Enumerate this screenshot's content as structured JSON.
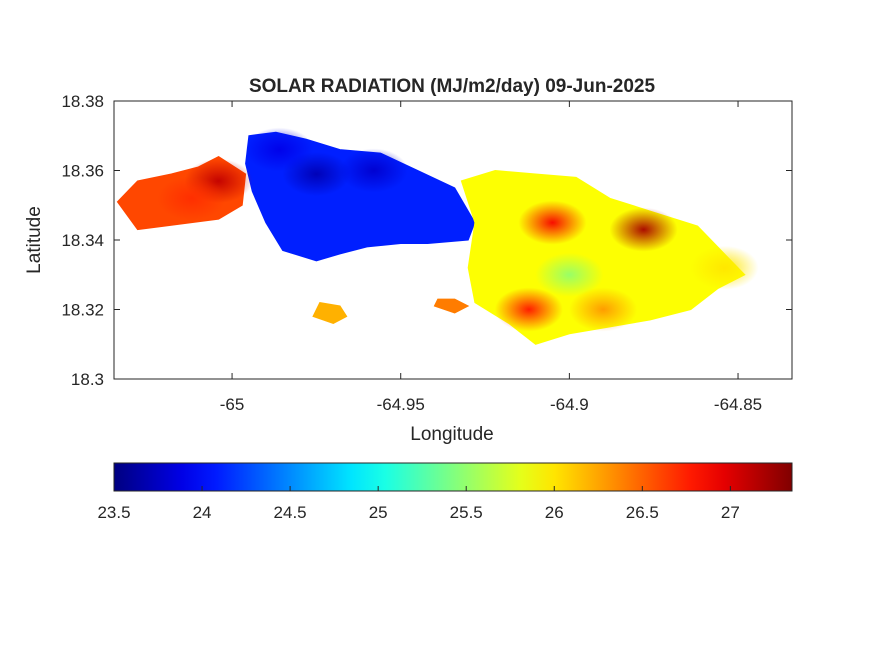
{
  "chart_data": {
    "type": "heatmap",
    "title": "SOLAR RADIATION (MJ/m2/day) 09-Jun-2025",
    "xlabel": "Longitude",
    "ylabel": "Latitude",
    "xlim": [
      -65.035,
      -64.834
    ],
    "ylim": [
      18.3,
      18.38
    ],
    "xticks": [
      -65,
      -64.95,
      -64.9,
      -64.85
    ],
    "xtick_labels": [
      "-65",
      "-64.95",
      "-64.9",
      "-64.85"
    ],
    "yticks": [
      18.3,
      18.32,
      18.34,
      18.36,
      18.38
    ],
    "ytick_labels": [
      "18.3",
      "18.32",
      "18.34",
      "18.36",
      "18.38"
    ],
    "grid": false,
    "colormap": "jet",
    "colorbar": {
      "location": "bottom",
      "clim": [
        23.5,
        27.35
      ],
      "ticks": [
        23.5,
        24,
        24.5,
        25,
        25.5,
        26,
        26.5,
        27
      ],
      "tick_labels": [
        "23.5",
        "24",
        "24.5",
        "25",
        "25.5",
        "26",
        "26.5",
        "27"
      ]
    },
    "regions": [
      {
        "name": "",
        "value": 26.6,
        "polygon": [
          [
            -65.034,
            18.351
          ],
          [
            -65.028,
            18.357
          ],
          [
            -65.018,
            18.359
          ],
          [
            -65.01,
            18.361
          ],
          [
            -65.004,
            18.364
          ],
          [
            -64.996,
            18.359
          ],
          [
            -64.997,
            18.35
          ],
          [
            -65.004,
            18.346
          ],
          [
            -65.012,
            18.345
          ],
          [
            -65.02,
            18.344
          ],
          [
            -65.028,
            18.343
          ]
        ]
      },
      {
        "name": "",
        "value": 24.1,
        "polygon": [
          [
            -64.995,
            18.37
          ],
          [
            -64.987,
            18.371
          ],
          [
            -64.978,
            18.369
          ],
          [
            -64.968,
            18.366
          ],
          [
            -64.956,
            18.365
          ],
          [
            -64.945,
            18.36
          ],
          [
            -64.934,
            18.355
          ],
          [
            -64.928,
            18.345
          ],
          [
            -64.93,
            18.34
          ],
          [
            -64.942,
            18.339
          ],
          [
            -64.95,
            18.339
          ],
          [
            -64.96,
            18.338
          ],
          [
            -64.968,
            18.336
          ],
          [
            -64.975,
            18.334
          ],
          [
            -64.985,
            18.337
          ],
          [
            -64.99,
            18.345
          ],
          [
            -64.994,
            18.354
          ],
          [
            -64.996,
            18.362
          ]
        ]
      },
      {
        "name": "",
        "value": 25.9,
        "polygon": [
          [
            -64.932,
            18.357
          ],
          [
            -64.922,
            18.36
          ],
          [
            -64.91,
            18.359
          ],
          [
            -64.898,
            18.358
          ],
          [
            -64.888,
            18.352
          ],
          [
            -64.875,
            18.348
          ],
          [
            -64.862,
            18.344
          ],
          [
            -64.854,
            18.336
          ],
          [
            -64.848,
            18.33
          ],
          [
            -64.856,
            18.326
          ],
          [
            -64.864,
            18.32
          ],
          [
            -64.876,
            18.317
          ],
          [
            -64.888,
            18.315
          ],
          [
            -64.9,
            18.313
          ],
          [
            -64.91,
            18.31
          ],
          [
            -64.918,
            18.316
          ],
          [
            -64.928,
            18.322
          ],
          [
            -64.93,
            18.332
          ],
          [
            -64.928,
            18.345
          ]
        ]
      },
      {
        "name": "",
        "value": 26.2,
        "polygon": [
          [
            -64.976,
            18.318
          ],
          [
            -64.97,
            18.316
          ],
          [
            -64.966,
            18.318
          ],
          [
            -64.968,
            18.321
          ],
          [
            -64.974,
            18.322
          ]
        ]
      },
      {
        "name": "",
        "value": 26.4,
        "polygon": [
          [
            -64.94,
            18.321
          ],
          [
            -64.934,
            18.319
          ],
          [
            -64.93,
            18.321
          ],
          [
            -64.934,
            18.323
          ],
          [
            -64.939,
            18.323
          ]
        ]
      }
    ],
    "hotspots": [
      {
        "x": -65.004,
        "y": 18.357,
        "value": 27.1
      },
      {
        "x": -65.012,
        "y": 18.352,
        "value": 26.7
      },
      {
        "x": -64.975,
        "y": 18.359,
        "value": 23.7
      },
      {
        "x": -64.958,
        "y": 18.36,
        "value": 23.8
      },
      {
        "x": -64.986,
        "y": 18.366,
        "value": 23.9
      },
      {
        "x": -64.905,
        "y": 18.345,
        "value": 26.9
      },
      {
        "x": -64.878,
        "y": 18.343,
        "value": 27.2
      },
      {
        "x": -64.9,
        "y": 18.33,
        "value": 25.5
      },
      {
        "x": -64.912,
        "y": 18.32,
        "value": 26.8
      },
      {
        "x": -64.89,
        "y": 18.32,
        "value": 26.3
      },
      {
        "x": -64.854,
        "y": 18.332,
        "value": 26.0
      }
    ]
  }
}
